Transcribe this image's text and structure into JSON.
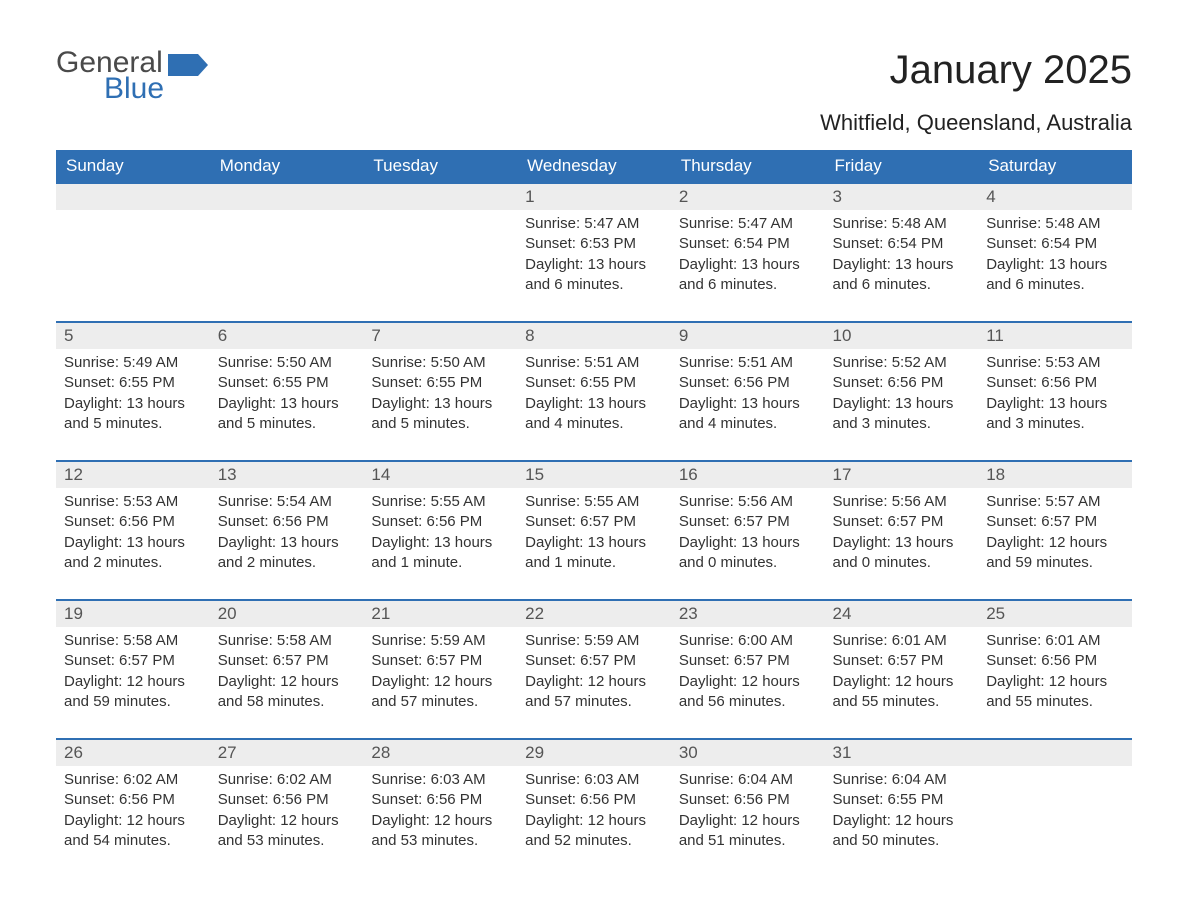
{
  "logo": {
    "general": "General",
    "blue": "Blue",
    "flag_color": "#2f6fb3"
  },
  "title": "January 2025",
  "subtitle": "Whitfield, Queensland, Australia",
  "colors": {
    "header_bg": "#2f6fb3",
    "header_text": "#ffffff",
    "row_border": "#2f6fb3",
    "daynum_bg": "#ededed",
    "daynum_text": "#555555",
    "body_text": "#333333",
    "page_bg": "#ffffff"
  },
  "typography": {
    "title_fontsize": 40,
    "subtitle_fontsize": 22,
    "header_fontsize": 17,
    "daynum_fontsize": 17,
    "body_fontsize": 15,
    "font_family": "Arial"
  },
  "calendar": {
    "type": "table",
    "columns": [
      "Sunday",
      "Monday",
      "Tuesday",
      "Wednesday",
      "Thursday",
      "Friday",
      "Saturday"
    ],
    "weeks": [
      [
        {
          "day": null
        },
        {
          "day": null
        },
        {
          "day": null
        },
        {
          "day": "1",
          "sunrise": "Sunrise: 5:47 AM",
          "sunset": "Sunset: 6:53 PM",
          "daylight": "Daylight: 13 hours and 6 minutes."
        },
        {
          "day": "2",
          "sunrise": "Sunrise: 5:47 AM",
          "sunset": "Sunset: 6:54 PM",
          "daylight": "Daylight: 13 hours and 6 minutes."
        },
        {
          "day": "3",
          "sunrise": "Sunrise: 5:48 AM",
          "sunset": "Sunset: 6:54 PM",
          "daylight": "Daylight: 13 hours and 6 minutes."
        },
        {
          "day": "4",
          "sunrise": "Sunrise: 5:48 AM",
          "sunset": "Sunset: 6:54 PM",
          "daylight": "Daylight: 13 hours and 6 minutes."
        }
      ],
      [
        {
          "day": "5",
          "sunrise": "Sunrise: 5:49 AM",
          "sunset": "Sunset: 6:55 PM",
          "daylight": "Daylight: 13 hours and 5 minutes."
        },
        {
          "day": "6",
          "sunrise": "Sunrise: 5:50 AM",
          "sunset": "Sunset: 6:55 PM",
          "daylight": "Daylight: 13 hours and 5 minutes."
        },
        {
          "day": "7",
          "sunrise": "Sunrise: 5:50 AM",
          "sunset": "Sunset: 6:55 PM",
          "daylight": "Daylight: 13 hours and 5 minutes."
        },
        {
          "day": "8",
          "sunrise": "Sunrise: 5:51 AM",
          "sunset": "Sunset: 6:55 PM",
          "daylight": "Daylight: 13 hours and 4 minutes."
        },
        {
          "day": "9",
          "sunrise": "Sunrise: 5:51 AM",
          "sunset": "Sunset: 6:56 PM",
          "daylight": "Daylight: 13 hours and 4 minutes."
        },
        {
          "day": "10",
          "sunrise": "Sunrise: 5:52 AM",
          "sunset": "Sunset: 6:56 PM",
          "daylight": "Daylight: 13 hours and 3 minutes."
        },
        {
          "day": "11",
          "sunrise": "Sunrise: 5:53 AM",
          "sunset": "Sunset: 6:56 PM",
          "daylight": "Daylight: 13 hours and 3 minutes."
        }
      ],
      [
        {
          "day": "12",
          "sunrise": "Sunrise: 5:53 AM",
          "sunset": "Sunset: 6:56 PM",
          "daylight": "Daylight: 13 hours and 2 minutes."
        },
        {
          "day": "13",
          "sunrise": "Sunrise: 5:54 AM",
          "sunset": "Sunset: 6:56 PM",
          "daylight": "Daylight: 13 hours and 2 minutes."
        },
        {
          "day": "14",
          "sunrise": "Sunrise: 5:55 AM",
          "sunset": "Sunset: 6:56 PM",
          "daylight": "Daylight: 13 hours and 1 minute."
        },
        {
          "day": "15",
          "sunrise": "Sunrise: 5:55 AM",
          "sunset": "Sunset: 6:57 PM",
          "daylight": "Daylight: 13 hours and 1 minute."
        },
        {
          "day": "16",
          "sunrise": "Sunrise: 5:56 AM",
          "sunset": "Sunset: 6:57 PM",
          "daylight": "Daylight: 13 hours and 0 minutes."
        },
        {
          "day": "17",
          "sunrise": "Sunrise: 5:56 AM",
          "sunset": "Sunset: 6:57 PM",
          "daylight": "Daylight: 13 hours and 0 minutes."
        },
        {
          "day": "18",
          "sunrise": "Sunrise: 5:57 AM",
          "sunset": "Sunset: 6:57 PM",
          "daylight": "Daylight: 12 hours and 59 minutes."
        }
      ],
      [
        {
          "day": "19",
          "sunrise": "Sunrise: 5:58 AM",
          "sunset": "Sunset: 6:57 PM",
          "daylight": "Daylight: 12 hours and 59 minutes."
        },
        {
          "day": "20",
          "sunrise": "Sunrise: 5:58 AM",
          "sunset": "Sunset: 6:57 PM",
          "daylight": "Daylight: 12 hours and 58 minutes."
        },
        {
          "day": "21",
          "sunrise": "Sunrise: 5:59 AM",
          "sunset": "Sunset: 6:57 PM",
          "daylight": "Daylight: 12 hours and 57 minutes."
        },
        {
          "day": "22",
          "sunrise": "Sunrise: 5:59 AM",
          "sunset": "Sunset: 6:57 PM",
          "daylight": "Daylight: 12 hours and 57 minutes."
        },
        {
          "day": "23",
          "sunrise": "Sunrise: 6:00 AM",
          "sunset": "Sunset: 6:57 PM",
          "daylight": "Daylight: 12 hours and 56 minutes."
        },
        {
          "day": "24",
          "sunrise": "Sunrise: 6:01 AM",
          "sunset": "Sunset: 6:57 PM",
          "daylight": "Daylight: 12 hours and 55 minutes."
        },
        {
          "day": "25",
          "sunrise": "Sunrise: 6:01 AM",
          "sunset": "Sunset: 6:56 PM",
          "daylight": "Daylight: 12 hours and 55 minutes."
        }
      ],
      [
        {
          "day": "26",
          "sunrise": "Sunrise: 6:02 AM",
          "sunset": "Sunset: 6:56 PM",
          "daylight": "Daylight: 12 hours and 54 minutes."
        },
        {
          "day": "27",
          "sunrise": "Sunrise: 6:02 AM",
          "sunset": "Sunset: 6:56 PM",
          "daylight": "Daylight: 12 hours and 53 minutes."
        },
        {
          "day": "28",
          "sunrise": "Sunrise: 6:03 AM",
          "sunset": "Sunset: 6:56 PM",
          "daylight": "Daylight: 12 hours and 53 minutes."
        },
        {
          "day": "29",
          "sunrise": "Sunrise: 6:03 AM",
          "sunset": "Sunset: 6:56 PM",
          "daylight": "Daylight: 12 hours and 52 minutes."
        },
        {
          "day": "30",
          "sunrise": "Sunrise: 6:04 AM",
          "sunset": "Sunset: 6:56 PM",
          "daylight": "Daylight: 12 hours and 51 minutes."
        },
        {
          "day": "31",
          "sunrise": "Sunrise: 6:04 AM",
          "sunset": "Sunset: 6:55 PM",
          "daylight": "Daylight: 12 hours and 50 minutes."
        },
        {
          "day": null
        }
      ]
    ]
  }
}
